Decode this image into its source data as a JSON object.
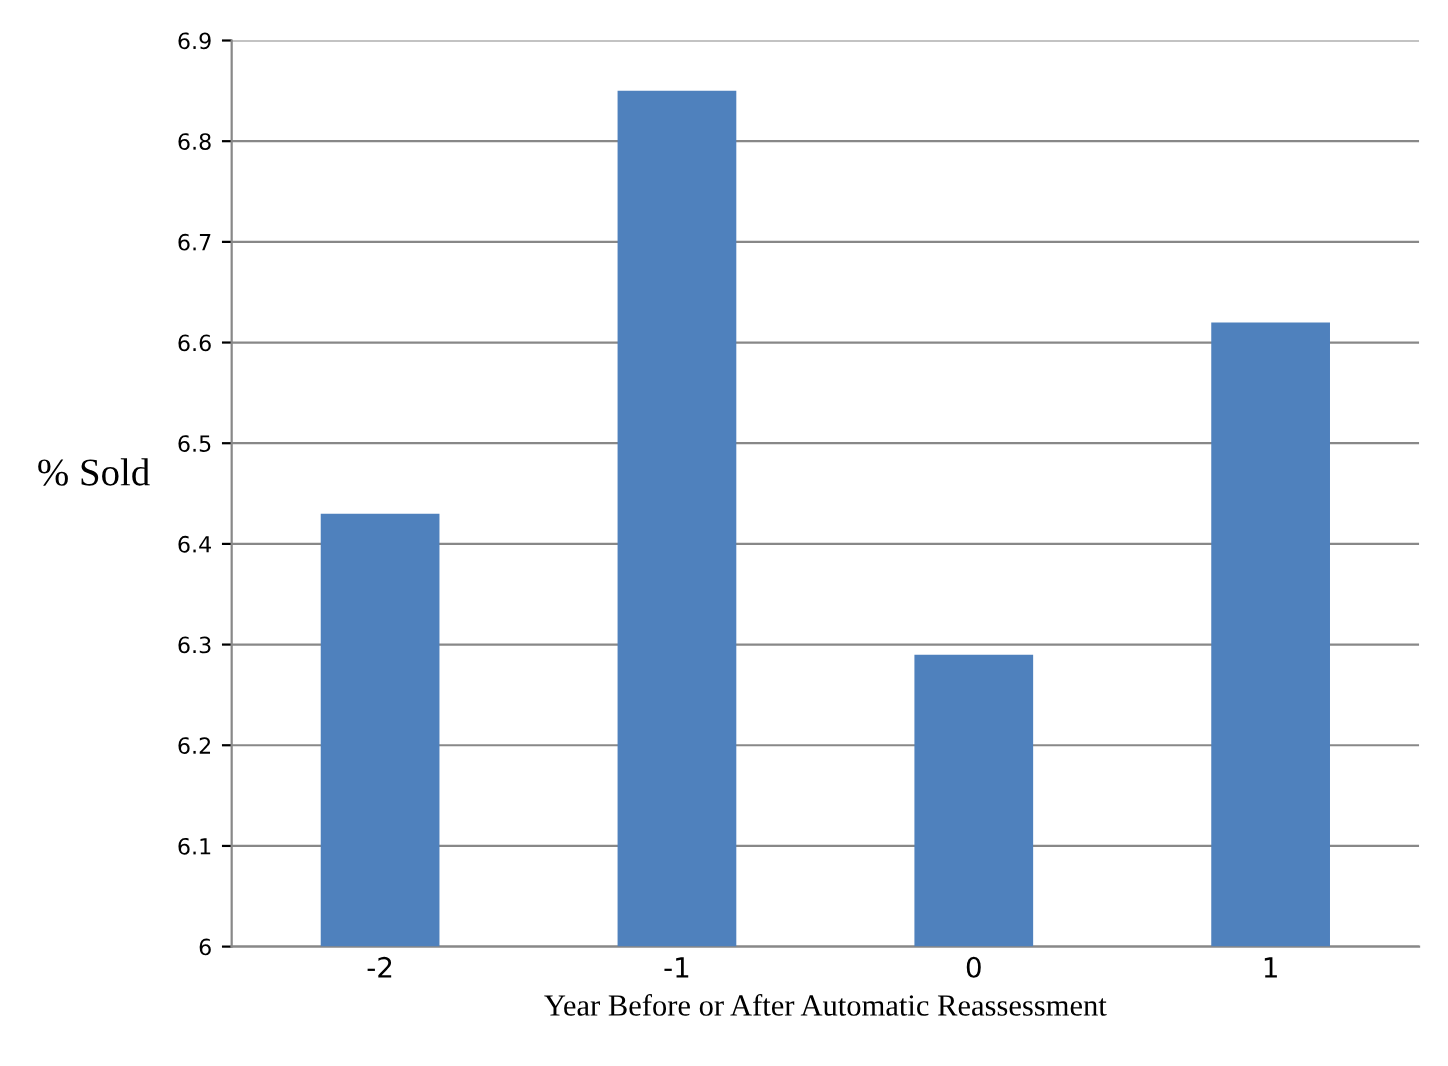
{
  "chart_data": {
    "type": "bar",
    "xlabel": "Year Before or After Automatic Reassessment",
    "ylabel": "% Sold",
    "categories": [
      "-2",
      "-1",
      "0",
      "1"
    ],
    "values": [
      6.43,
      6.85,
      6.29,
      6.62
    ],
    "color": "#4f81bd",
    "ylim": [
      6,
      6.9
    ],
    "yticks": [
      {
        "value": 6,
        "label": "6"
      },
      6.1,
      6.2,
      6.3,
      6.4,
      6.5,
      6.6,
      6.7,
      6.8,
      6.9
    ],
    "grid": "y"
  }
}
